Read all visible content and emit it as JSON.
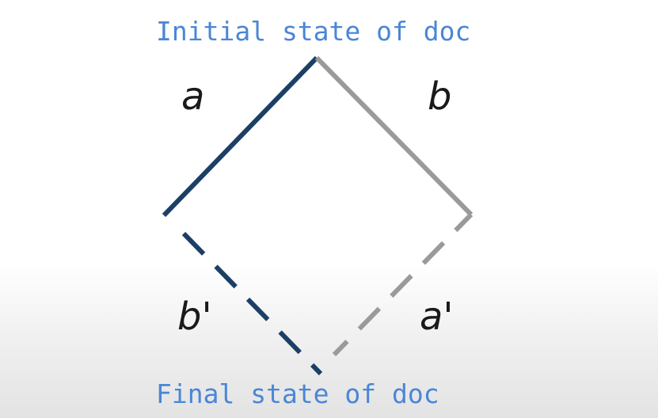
{
  "captions": {
    "initial": "Initial state of doc",
    "final": "Final state of doc"
  },
  "labels": {
    "a": "a",
    "b": "b",
    "b_prime": "b'",
    "a_prime": "a'"
  },
  "colors": {
    "caption": "#4a86d6",
    "op_a": "#1c3f66",
    "op_b": "#9a9a9a",
    "label": "#1a1a1a"
  }
}
